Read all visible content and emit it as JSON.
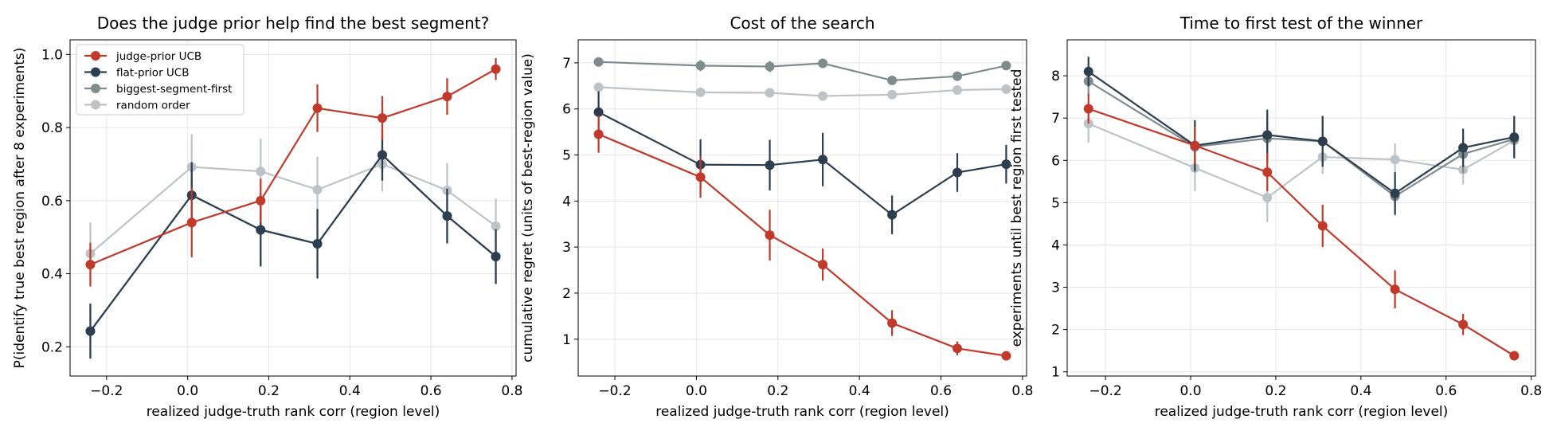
{
  "chart_data": [
    {
      "type": "line",
      "title": "Does the judge prior help find the best segment?",
      "xlabel": "realized judge-truth rank corr (region level)",
      "ylabel": "P(identify true best region after 8 experiments)",
      "xlim": [
        -0.29,
        0.81
      ],
      "ylim": [
        0.12,
        1.04
      ],
      "xticks": [
        -0.2,
        0.0,
        0.2,
        0.4,
        0.6,
        0.8
      ],
      "xtick_labels": [
        "−0.2",
        "0.0",
        "0.2",
        "0.4",
        "0.6",
        "0.8"
      ],
      "yticks": [
        0.2,
        0.4,
        0.6,
        0.8,
        1.0
      ],
      "ytick_labels": [
        "0.2",
        "0.4",
        "0.6",
        "0.8",
        "1.0"
      ],
      "grid": true,
      "legend": "top-left",
      "series": [
        {
          "name": "judge-prior UCB",
          "color": "#c0392b",
          "x": [
            -0.24,
            0.01,
            0.18,
            0.32,
            0.48,
            0.64,
            0.76
          ],
          "y": [
            0.425,
            0.54,
            0.6,
            0.853,
            0.826,
            0.885,
            0.96
          ],
          "err": [
            0.06,
            0.095,
            0.06,
            0.065,
            0.06,
            0.05,
            0.03
          ]
        },
        {
          "name": "flat-prior UCB",
          "color": "#2c3e50",
          "x": [
            -0.24,
            0.01,
            0.18,
            0.32,
            0.48,
            0.64,
            0.76
          ],
          "y": [
            0.243,
            0.615,
            0.52,
            0.482,
            0.725,
            0.558,
            0.447
          ],
          "err": [
            0.075,
            0.09,
            0.1,
            0.095,
            0.07,
            0.075,
            0.075
          ]
        },
        {
          "name": "biggest-segment-first",
          "color": "#7f8c8d",
          "x": [
            -0.24,
            0.01,
            0.18,
            0.32,
            0.48,
            0.64,
            0.76
          ],
          "y": [
            0.243,
            0.615,
            0.52,
            0.482,
            0.725,
            0.558,
            0.447
          ],
          "err": [
            0.075,
            0.09,
            0.1,
            0.095,
            0.07,
            0.075,
            0.075
          ]
        },
        {
          "name": "random order",
          "color": "#bdc3c7",
          "x": [
            -0.24,
            0.01,
            0.18,
            0.32,
            0.48,
            0.64,
            0.76
          ],
          "y": [
            0.455,
            0.692,
            0.68,
            0.63,
            0.7,
            0.628,
            0.53
          ],
          "err": [
            0.085,
            0.09,
            0.09,
            0.09,
            0.075,
            0.075,
            0.075
          ]
        }
      ]
    },
    {
      "type": "line",
      "title": "Cost of the search",
      "xlabel": "realized judge-truth rank corr (region level)",
      "ylabel": "cumulative regret (units of best-region value)",
      "xlim": [
        -0.29,
        0.81
      ],
      "ylim": [
        0.2,
        7.5
      ],
      "xticks": [
        -0.2,
        0.0,
        0.2,
        0.4,
        0.6,
        0.8
      ],
      "xtick_labels": [
        "−0.2",
        "0.0",
        "0.2",
        "0.4",
        "0.6",
        "0.8"
      ],
      "yticks": [
        1,
        2,
        3,
        4,
        5,
        6,
        7
      ],
      "ytick_labels": [
        "1",
        "2",
        "3",
        "4",
        "5",
        "6",
        "7"
      ],
      "grid": true,
      "series": [
        {
          "name": "judge-prior UCB",
          "color": "#c0392b",
          "x": [
            -0.24,
            0.01,
            0.18,
            0.31,
            0.48,
            0.64,
            0.76
          ],
          "y": [
            5.45,
            4.52,
            3.26,
            2.62,
            1.35,
            0.8,
            0.64
          ],
          "err": [
            0.4,
            0.45,
            0.55,
            0.35,
            0.28,
            0.15,
            0.1
          ]
        },
        {
          "name": "flat-prior UCB",
          "color": "#2c3e50",
          "x": [
            -0.24,
            0.01,
            0.18,
            0.31,
            0.48,
            0.64,
            0.76
          ],
          "y": [
            5.93,
            4.79,
            4.78,
            4.9,
            3.7,
            4.62,
            4.8
          ],
          "err": [
            0.45,
            0.55,
            0.55,
            0.58,
            0.42,
            0.42,
            0.42
          ]
        },
        {
          "name": "biggest-segment-first",
          "color": "#7f8c8d",
          "x": [
            -0.24,
            0.01,
            0.18,
            0.31,
            0.48,
            0.64,
            0.76
          ],
          "y": [
            7.02,
            6.94,
            6.92,
            6.99,
            6.62,
            6.71,
            6.94
          ],
          "err": [
            0.08,
            0.12,
            0.12,
            0.1,
            0.08,
            0.07,
            0.07
          ]
        },
        {
          "name": "random order",
          "color": "#bdc3c7",
          "x": [
            -0.24,
            0.01,
            0.18,
            0.31,
            0.48,
            0.64,
            0.76
          ],
          "y": [
            6.47,
            6.36,
            6.35,
            6.28,
            6.31,
            6.41,
            6.43
          ],
          "err": [
            0.06,
            0.06,
            0.06,
            0.06,
            0.06,
            0.06,
            0.06
          ]
        }
      ]
    },
    {
      "type": "line",
      "title": "Time to first test of the winner",
      "xlabel": "realized judge-truth rank corr (region level)",
      "ylabel": "experiments until best region first tested",
      "xlim": [
        -0.29,
        0.81
      ],
      "ylim": [
        0.9,
        8.85
      ],
      "xticks": [
        -0.2,
        0.0,
        0.2,
        0.4,
        0.6,
        0.8
      ],
      "xtick_labels": [
        "−0.2",
        "0.0",
        "0.2",
        "0.4",
        "0.6",
        "0.8"
      ],
      "yticks": [
        1,
        2,
        3,
        4,
        5,
        6,
        7,
        8
      ],
      "ytick_labels": [
        "1",
        "2",
        "3",
        "4",
        "5",
        "6",
        "7",
        "8"
      ],
      "grid": true,
      "series": [
        {
          "name": "judge-prior UCB",
          "color": "#c0392b",
          "x": [
            -0.24,
            0.01,
            0.18,
            0.31,
            0.48,
            0.64,
            0.76
          ],
          "y": [
            7.22,
            6.35,
            5.72,
            4.45,
            2.95,
            2.12,
            1.38
          ],
          "err": [
            0.35,
            0.45,
            0.45,
            0.5,
            0.45,
            0.25,
            0.08
          ]
        },
        {
          "name": "flat-prior UCB",
          "color": "#2c3e50",
          "x": [
            -0.24,
            0.01,
            0.18,
            0.31,
            0.48,
            0.64,
            0.76
          ],
          "y": [
            8.1,
            6.35,
            6.6,
            6.45,
            5.22,
            6.3,
            6.55
          ],
          "err": [
            0.35,
            0.6,
            0.6,
            0.6,
            0.5,
            0.45,
            0.5
          ]
        },
        {
          "name": "biggest-segment-first",
          "color": "#7f8c8d",
          "x": [
            -0.24,
            0.01,
            0.18,
            0.31,
            0.48,
            0.64,
            0.76
          ],
          "y": [
            7.87,
            6.32,
            6.52,
            6.45,
            5.15,
            6.15,
            6.5
          ],
          "err": [
            0.35,
            0.6,
            0.6,
            0.6,
            0.45,
            0.45,
            0.45
          ]
        },
        {
          "name": "random order",
          "color": "#bdc3c7",
          "x": [
            -0.24,
            0.01,
            0.18,
            0.31,
            0.48,
            0.64,
            0.76
          ],
          "y": [
            6.87,
            5.82,
            5.12,
            6.08,
            6.02,
            5.78,
            6.47
          ],
          "err": [
            0.45,
            0.55,
            0.58,
            0.4,
            0.38,
            0.35,
            0.3
          ]
        }
      ]
    }
  ]
}
